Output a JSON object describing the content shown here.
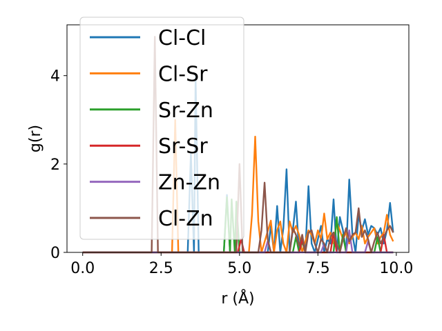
{
  "chart_data": {
    "type": "line",
    "xlabel": "r (Å)",
    "ylabel": "g(r)",
    "xlim": [
      -0.5,
      10.4
    ],
    "ylim": [
      0,
      5.15
    ],
    "xticks": [
      0.0,
      2.5,
      5.0,
      7.5,
      10.0
    ],
    "xtick_labels": [
      "0.0",
      "2.5",
      "5.0",
      "7.5",
      "10.0"
    ],
    "yticks": [
      0,
      2,
      4
    ],
    "ytick_labels": [
      "0",
      "2",
      "4"
    ],
    "grid": false,
    "legend_position": "top-left",
    "series": [
      {
        "name": "Cl-Cl",
        "color": "#1f77b4",
        "points": [
          [
            0.0,
            0
          ],
          [
            3.35,
            0
          ],
          [
            3.45,
            2.25
          ],
          [
            3.55,
            0
          ],
          [
            3.6,
            4.0
          ],
          [
            3.7,
            0
          ],
          [
            4.5,
            0
          ],
          [
            4.6,
            1.3
          ],
          [
            4.7,
            0
          ],
          [
            5.9,
            0
          ],
          [
            6.0,
            0.6
          ],
          [
            6.1,
            0
          ],
          [
            6.2,
            1.05
          ],
          [
            6.3,
            0
          ],
          [
            6.4,
            0.55
          ],
          [
            6.5,
            1.88
          ],
          [
            6.6,
            0
          ],
          [
            6.7,
            0.5
          ],
          [
            6.8,
            1.15
          ],
          [
            6.9,
            0
          ],
          [
            7.0,
            0.3
          ],
          [
            7.1,
            0
          ],
          [
            7.2,
            1.5
          ],
          [
            7.3,
            0.2
          ],
          [
            7.4,
            0
          ],
          [
            7.6,
            0.6
          ],
          [
            7.7,
            0
          ],
          [
            7.8,
            0.3
          ],
          [
            7.9,
            0.2
          ],
          [
            8.0,
            1.2
          ],
          [
            8.1,
            0
          ],
          [
            8.2,
            0.8
          ],
          [
            8.3,
            0.5
          ],
          [
            8.4,
            0
          ],
          [
            8.5,
            1.65
          ],
          [
            8.6,
            0.4
          ],
          [
            8.7,
            0
          ],
          [
            8.8,
            0.85
          ],
          [
            8.9,
            0.5
          ],
          [
            9.0,
            0.75
          ],
          [
            9.1,
            0.4
          ],
          [
            9.2,
            0.6
          ],
          [
            9.3,
            0.55
          ],
          [
            9.4,
            0.4
          ],
          [
            9.5,
            0.55
          ],
          [
            9.6,
            0.2
          ],
          [
            9.7,
            0.5
          ],
          [
            9.8,
            1.12
          ],
          [
            9.9,
            0.45
          ]
        ]
      },
      {
        "name": "Cl-Sr",
        "color": "#ff7f0e",
        "points": [
          [
            0.0,
            0
          ],
          [
            2.85,
            0
          ],
          [
            2.95,
            3.0
          ],
          [
            3.05,
            0
          ],
          [
            5.3,
            0
          ],
          [
            5.4,
            0.85
          ],
          [
            5.5,
            2.62
          ],
          [
            5.6,
            0.7
          ],
          [
            5.7,
            0
          ],
          [
            6.0,
            0.72
          ],
          [
            6.1,
            0
          ],
          [
            6.2,
            0.5
          ],
          [
            6.3,
            0.7
          ],
          [
            6.4,
            0.2
          ],
          [
            6.5,
            0
          ],
          [
            6.6,
            0.7
          ],
          [
            6.7,
            0.45
          ],
          [
            6.8,
            0.6
          ],
          [
            6.9,
            0.4
          ],
          [
            7.0,
            0
          ],
          [
            7.2,
            0.5
          ],
          [
            7.3,
            0.4
          ],
          [
            7.4,
            0.2
          ],
          [
            7.5,
            0.5
          ],
          [
            7.6,
            0.3
          ],
          [
            7.7,
            0.88
          ],
          [
            7.8,
            0.3
          ],
          [
            7.9,
            0.45
          ],
          [
            8.0,
            0.2
          ],
          [
            8.1,
            0.68
          ],
          [
            8.2,
            0.5
          ],
          [
            8.3,
            0.3
          ],
          [
            8.4,
            0.45
          ],
          [
            8.5,
            0.2
          ],
          [
            8.6,
            0.35
          ],
          [
            8.7,
            0.45
          ],
          [
            8.8,
            0.3
          ],
          [
            8.9,
            0.6
          ],
          [
            9.0,
            0.2
          ],
          [
            9.1,
            0.35
          ],
          [
            9.2,
            0.45
          ],
          [
            9.3,
            0.55
          ],
          [
            9.4,
            0.2
          ],
          [
            9.5,
            0.35
          ],
          [
            9.6,
            0.45
          ],
          [
            9.7,
            0.85
          ],
          [
            9.8,
            0.4
          ],
          [
            9.9,
            0.25
          ]
        ]
      },
      {
        "name": "Sr-Zn",
        "color": "#2ca02c",
        "points": [
          [
            0.0,
            0
          ],
          [
            4.5,
            0
          ],
          [
            4.6,
            1.25
          ],
          [
            4.7,
            0
          ],
          [
            4.75,
            1.2
          ],
          [
            4.85,
            0
          ],
          [
            4.9,
            1.15
          ],
          [
            5.0,
            0
          ],
          [
            6.7,
            0
          ],
          [
            6.8,
            0.35
          ],
          [
            6.9,
            0
          ],
          [
            7.0,
            0.25
          ],
          [
            7.1,
            0
          ],
          [
            8.0,
            0
          ],
          [
            8.1,
            0.8
          ],
          [
            8.2,
            0
          ],
          [
            8.3,
            0.4
          ],
          [
            8.4,
            0
          ],
          [
            9.3,
            0
          ],
          [
            9.4,
            0.35
          ],
          [
            9.5,
            0
          ],
          [
            9.9,
            0
          ]
        ]
      },
      {
        "name": "Sr-Sr",
        "color": "#d62728",
        "points": [
          [
            0.0,
            0
          ],
          [
            4.95,
            0
          ],
          [
            5.05,
            0.3
          ],
          [
            5.15,
            0
          ],
          [
            6.9,
            0
          ],
          [
            7.0,
            0.3
          ],
          [
            7.1,
            0
          ],
          [
            7.9,
            0
          ],
          [
            8.0,
            0.45
          ],
          [
            8.1,
            0
          ],
          [
            9.5,
            0
          ],
          [
            9.6,
            0.4
          ],
          [
            9.7,
            0
          ],
          [
            9.9,
            0
          ]
        ]
      },
      {
        "name": "Zn-Zn",
        "color": "#9467bd",
        "points": [
          [
            0.0,
            0
          ],
          [
            5.8,
            0
          ],
          [
            5.9,
            0.25
          ],
          [
            6.0,
            0
          ],
          [
            7.6,
            0
          ],
          [
            7.7,
            0.2
          ],
          [
            7.8,
            0
          ],
          [
            8.4,
            0
          ],
          [
            8.5,
            0.5
          ],
          [
            8.6,
            0
          ],
          [
            9.0,
            0
          ],
          [
            9.1,
            0.25
          ],
          [
            9.2,
            0
          ],
          [
            9.9,
            0
          ]
        ]
      },
      {
        "name": "Cl-Zn",
        "color": "#8c564b",
        "points": [
          [
            0.0,
            0
          ],
          [
            2.2,
            0
          ],
          [
            2.3,
            4.88
          ],
          [
            2.4,
            0
          ],
          [
            4.9,
            0
          ],
          [
            5.0,
            2.0
          ],
          [
            5.1,
            0
          ],
          [
            5.6,
            0
          ],
          [
            5.7,
            0.5
          ],
          [
            5.8,
            1.58
          ],
          [
            5.9,
            0.3
          ],
          [
            6.0,
            0
          ],
          [
            6.6,
            0
          ],
          [
            6.7,
            0.55
          ],
          [
            6.8,
            0.4
          ],
          [
            6.9,
            0.15
          ],
          [
            7.0,
            0.4
          ],
          [
            7.1,
            0
          ],
          [
            7.2,
            0.45
          ],
          [
            7.3,
            0.5
          ],
          [
            7.4,
            0.2
          ],
          [
            7.5,
            0
          ],
          [
            7.6,
            0.3
          ],
          [
            7.7,
            0.2
          ],
          [
            7.8,
            0
          ],
          [
            7.9,
            0.35
          ],
          [
            8.0,
            0.45
          ],
          [
            8.1,
            0.2
          ],
          [
            8.2,
            0
          ],
          [
            8.3,
            0.3
          ],
          [
            8.4,
            0.55
          ],
          [
            8.5,
            0.25
          ],
          [
            8.6,
            0.4
          ],
          [
            8.7,
            0.45
          ],
          [
            8.8,
            1.0
          ],
          [
            8.9,
            0.35
          ],
          [
            9.0,
            0.5
          ],
          [
            9.1,
            0.3
          ],
          [
            9.2,
            0
          ],
          [
            9.3,
            0.25
          ],
          [
            9.4,
            0.45
          ],
          [
            9.5,
            0.2
          ],
          [
            9.6,
            0.35
          ],
          [
            9.7,
            0.5
          ],
          [
            9.8,
            0.6
          ],
          [
            9.9,
            0.45
          ]
        ]
      }
    ]
  }
}
